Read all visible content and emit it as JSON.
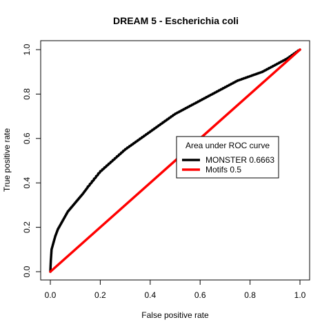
{
  "chart_data": {
    "type": "line",
    "title": "DREAM 5 - Escherichia coli",
    "xlabel": "False positive rate",
    "ylabel": "True positive rate",
    "xlim": [
      0,
      1
    ],
    "ylim": [
      0,
      1
    ],
    "xticks": [
      "0.0",
      "0.2",
      "0.4",
      "0.6",
      "0.8",
      "1.0"
    ],
    "yticks": [
      "0.0",
      "0.2",
      "0.4",
      "0.6",
      "0.8",
      "1.0"
    ],
    "grid": false,
    "legend": {
      "title": "Area under ROC curve",
      "placement": "center-right"
    },
    "series": [
      {
        "name": "MONSTER 0.6663",
        "color": "#000000",
        "x": [
          0.0,
          0.002,
          0.005,
          0.01,
          0.02,
          0.03,
          0.05,
          0.07,
          0.1,
          0.13,
          0.15,
          0.2,
          0.25,
          0.3,
          0.35,
          0.4,
          0.45,
          0.5,
          0.55,
          0.6,
          0.65,
          0.7,
          0.75,
          0.8,
          0.85,
          0.9,
          0.95,
          1.0
        ],
        "y": [
          0.0,
          0.05,
          0.1,
          0.12,
          0.16,
          0.19,
          0.23,
          0.27,
          0.31,
          0.35,
          0.38,
          0.45,
          0.5,
          0.55,
          0.59,
          0.63,
          0.67,
          0.71,
          0.74,
          0.77,
          0.8,
          0.83,
          0.86,
          0.88,
          0.9,
          0.93,
          0.96,
          1.0
        ]
      },
      {
        "name": "Motifs 0.5",
        "color": "#ff0000",
        "x": [
          0.0,
          1.0
        ],
        "y": [
          0.0,
          1.0
        ]
      }
    ]
  }
}
